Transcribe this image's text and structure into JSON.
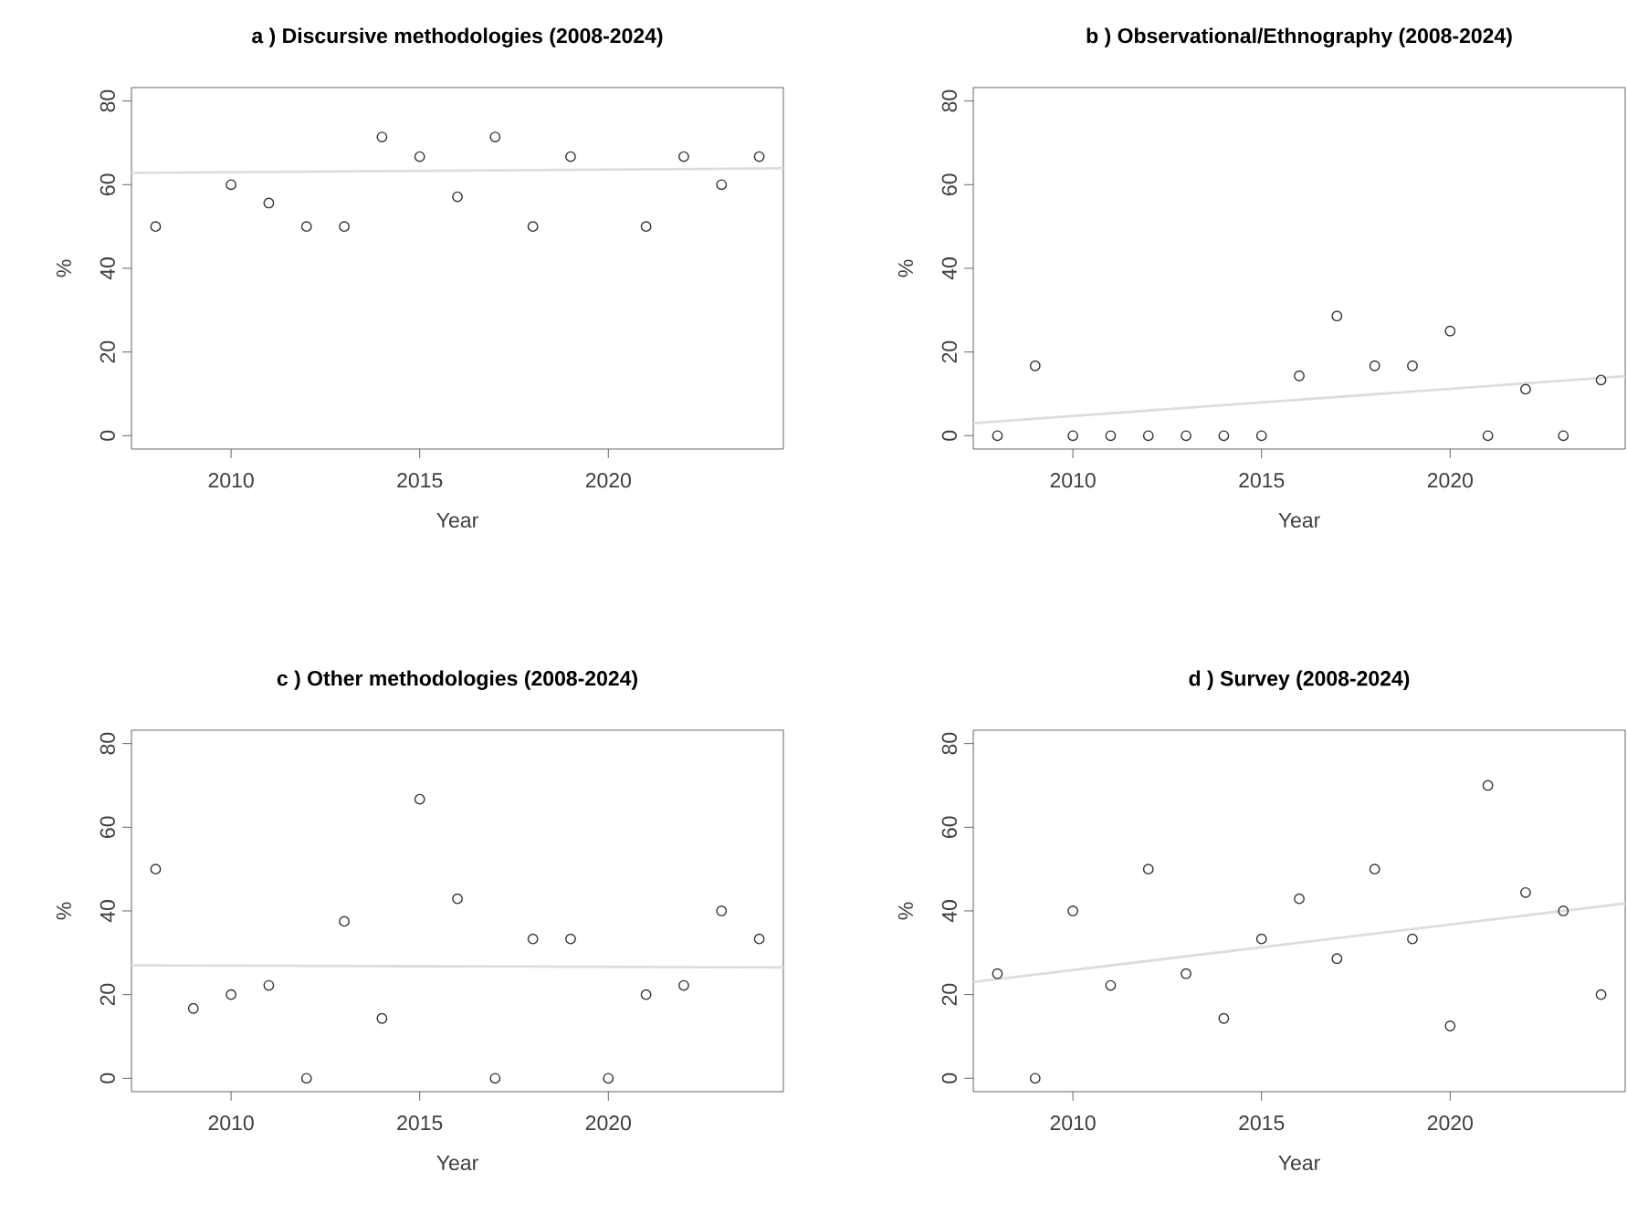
{
  "chart_data": [
    {
      "type": "scatter",
      "title": "a ) Discursive methodologies (2008-2024)",
      "xlabel": "Year",
      "ylabel": "%",
      "xlim": [
        2007.36,
        2024.64
      ],
      "ylim": [
        -3.2,
        83.2
      ],
      "xticks": [
        2010,
        2015,
        2020
      ],
      "yticks": [
        0,
        20,
        40,
        60,
        80
      ],
      "series": [
        {
          "marker": "circle",
          "color": "#333333",
          "x": [
            2008,
            2010,
            2011,
            2012,
            2013,
            2014,
            2015,
            2016,
            2017,
            2018,
            2019,
            2021,
            2022,
            2023,
            2024
          ],
          "values": [
            50,
            60,
            55.6,
            50,
            50,
            71.4,
            66.7,
            57.1,
            71.4,
            50,
            66.7,
            50,
            66.7,
            60,
            66.7
          ]
        },
        {
          "type": "line",
          "color": "#dddddd",
          "x": [
            2007.36,
            2024.64
          ],
          "values": [
            62.8,
            63.9
          ]
        }
      ]
    },
    {
      "type": "scatter",
      "title": "b ) Observational/Ethnography (2008-2024)",
      "xlabel": "Year",
      "ylabel": "%",
      "xlim": [
        2007.36,
        2024.64
      ],
      "ylim": [
        -3.2,
        83.2
      ],
      "xticks": [
        2010,
        2015,
        2020
      ],
      "yticks": [
        0,
        20,
        40,
        60,
        80
      ],
      "series": [
        {
          "marker": "circle",
          "color": "#333333",
          "x": [
            2008,
            2009,
            2010,
            2011,
            2012,
            2013,
            2014,
            2015,
            2016,
            2017,
            2018,
            2019,
            2020,
            2021,
            2022,
            2023,
            2024
          ],
          "values": [
            0,
            16.7,
            0,
            0,
            0,
            0,
            0,
            0,
            14.3,
            28.6,
            16.7,
            16.7,
            25,
            0,
            11.1,
            0,
            13.3
          ]
        },
        {
          "type": "line",
          "color": "#dddddd",
          "x": [
            2007.36,
            2024.64
          ],
          "values": [
            3,
            14.2
          ]
        }
      ]
    },
    {
      "type": "scatter",
      "title": "c ) Other methodologies (2008-2024)",
      "xlabel": "Year",
      "ylabel": "%",
      "xlim": [
        2007.36,
        2024.64
      ],
      "ylim": [
        -3.2,
        83.2
      ],
      "xticks": [
        2010,
        2015,
        2020
      ],
      "yticks": [
        0,
        20,
        40,
        60,
        80
      ],
      "series": [
        {
          "marker": "circle",
          "color": "#333333",
          "x": [
            2008,
            2009,
            2010,
            2011,
            2012,
            2013,
            2014,
            2015,
            2016,
            2017,
            2018,
            2019,
            2020,
            2021,
            2022,
            2023,
            2024
          ],
          "values": [
            50,
            16.7,
            20,
            22.2,
            0,
            37.5,
            14.3,
            66.7,
            42.9,
            0,
            33.3,
            33.3,
            0,
            20,
            22.2,
            40,
            33.3
          ]
        },
        {
          "type": "line",
          "color": "#dddddd",
          "x": [
            2007.36,
            2024.64
          ],
          "values": [
            27,
            26.5
          ]
        }
      ]
    },
    {
      "type": "scatter",
      "title": "d ) Survey (2008-2024)",
      "xlabel": "Year",
      "ylabel": "%",
      "xlim": [
        2007.36,
        2024.64
      ],
      "ylim": [
        -3.2,
        83.2
      ],
      "xticks": [
        2010,
        2015,
        2020
      ],
      "yticks": [
        0,
        20,
        40,
        60,
        80
      ],
      "series": [
        {
          "marker": "circle",
          "color": "#333333",
          "x": [
            2008,
            2009,
            2010,
            2011,
            2012,
            2013,
            2014,
            2015,
            2016,
            2017,
            2018,
            2019,
            2020,
            2021,
            2022,
            2023,
            2024
          ],
          "values": [
            25,
            0,
            40,
            22.2,
            50,
            25,
            14.3,
            33.3,
            42.9,
            28.6,
            50,
            33.3,
            12.5,
            70,
            44.4,
            40,
            20
          ]
        },
        {
          "type": "line",
          "color": "#dddddd",
          "x": [
            2007.36,
            2024.64
          ],
          "values": [
            23,
            41.8
          ]
        }
      ]
    }
  ]
}
